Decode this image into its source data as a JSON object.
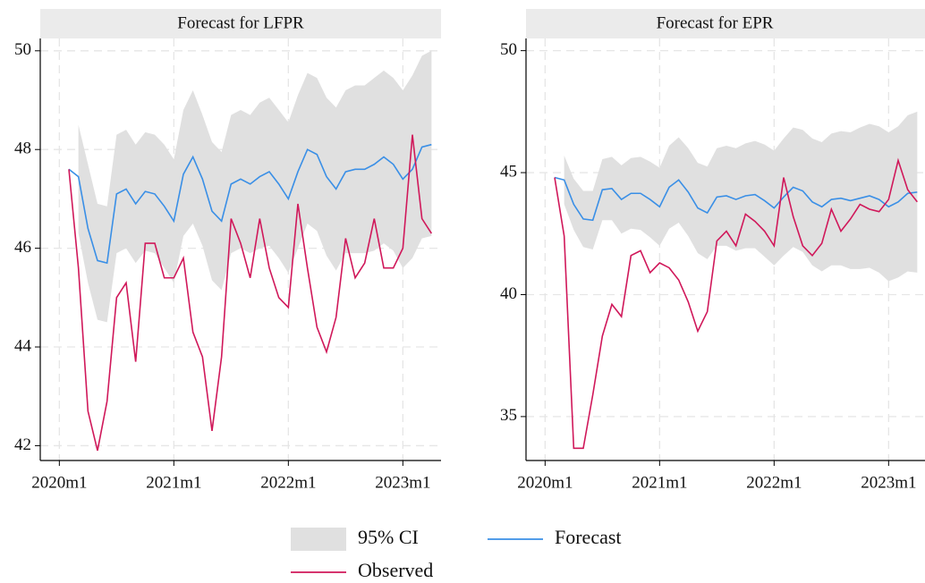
{
  "chart_data": [
    {
      "type": "line",
      "title": "Forecast for LFPR",
      "x": [
        "2020m2",
        "2020m3",
        "2020m4",
        "2020m5",
        "2020m6",
        "2020m7",
        "2020m8",
        "2020m9",
        "2020m10",
        "2020m11",
        "2020m12",
        "2021m1",
        "2021m2",
        "2021m3",
        "2021m4",
        "2021m5",
        "2021m6",
        "2021m7",
        "2021m8",
        "2021m9",
        "2021m10",
        "2021m11",
        "2021m12",
        "2022m1",
        "2022m2",
        "2022m3",
        "2022m4",
        "2022m5",
        "2022m6",
        "2022m7",
        "2022m8",
        "2022m9",
        "2022m10",
        "2022m11",
        "2022m12",
        "2023m1",
        "2023m2",
        "2023m3",
        "2023m4"
      ],
      "xlim": [
        "2019m11",
        "2023m5"
      ],
      "xticks": [
        "2020m1",
        "2021m1",
        "2022m1",
        "2023m1"
      ],
      "ylim": [
        41.7,
        50.25
      ],
      "yticks": [
        42,
        44,
        46,
        48,
        50
      ],
      "grid": true,
      "series": [
        {
          "name": "95% CI",
          "color": "#e0e0e0",
          "upper": [
            null,
            48.5,
            47.7,
            46.9,
            46.85,
            48.3,
            48.4,
            48.1,
            48.35,
            48.3,
            48.1,
            47.8,
            48.8,
            49.2,
            48.7,
            48.15,
            47.95,
            48.7,
            48.8,
            48.7,
            48.95,
            49.05,
            48.8,
            48.55,
            49.1,
            49.55,
            49.45,
            49.05,
            48.85,
            49.2,
            49.3,
            49.3,
            49.45,
            49.6,
            49.45,
            49.2,
            49.5,
            49.9,
            50.0
          ],
          "lower": [
            null,
            46.3,
            45.3,
            44.55,
            44.5,
            45.9,
            46.0,
            45.7,
            45.95,
            45.9,
            45.6,
            45.3,
            46.25,
            46.5,
            46.05,
            45.35,
            45.15,
            45.9,
            46.0,
            45.9,
            46.0,
            46.05,
            45.8,
            45.5,
            46.0,
            46.5,
            46.35,
            45.85,
            45.55,
            45.9,
            45.9,
            45.9,
            45.95,
            46.1,
            45.95,
            45.6,
            45.8,
            46.2,
            46.25
          ]
        },
        {
          "name": "Forecast",
          "color": "#3a8fe6",
          "values": [
            47.6,
            47.45,
            46.4,
            45.75,
            45.7,
            47.1,
            47.2,
            46.9,
            47.15,
            47.1,
            46.85,
            46.55,
            47.5,
            47.85,
            47.4,
            46.75,
            46.55,
            47.3,
            47.4,
            47.3,
            47.45,
            47.55,
            47.3,
            47.0,
            47.55,
            48.0,
            47.9,
            47.45,
            47.2,
            47.55,
            47.6,
            47.6,
            47.7,
            47.85,
            47.7,
            47.4,
            47.6,
            48.05,
            48.1
          ]
        },
        {
          "name": "Observed",
          "color": "#d0185a",
          "values": [
            47.6,
            45.6,
            42.7,
            41.9,
            42.9,
            45.0,
            45.3,
            43.7,
            46.1,
            46.1,
            45.4,
            45.4,
            45.8,
            44.3,
            43.8,
            42.3,
            43.8,
            46.6,
            46.1,
            45.4,
            46.6,
            45.6,
            45.0,
            44.8,
            46.9,
            45.6,
            44.4,
            43.9,
            44.6,
            46.2,
            45.4,
            45.7,
            46.6,
            45.6,
            45.6,
            46.0,
            48.3,
            46.6,
            46.3
          ]
        }
      ]
    },
    {
      "type": "line",
      "title": "Forecast for EPR",
      "x": [
        "2020m2",
        "2020m3",
        "2020m4",
        "2020m5",
        "2020m6",
        "2020m7",
        "2020m8",
        "2020m9",
        "2020m10",
        "2020m11",
        "2020m12",
        "2021m1",
        "2021m2",
        "2021m3",
        "2021m4",
        "2021m5",
        "2021m6",
        "2021m7",
        "2021m8",
        "2021m9",
        "2021m10",
        "2021m11",
        "2021m12",
        "2022m1",
        "2022m2",
        "2022m3",
        "2022m4",
        "2022m5",
        "2022m6",
        "2022m7",
        "2022m8",
        "2022m9",
        "2022m10",
        "2022m11",
        "2022m12",
        "2023m1",
        "2023m2",
        "2023m3",
        "2023m4"
      ],
      "xlim": [
        "2019m11",
        "2023m5"
      ],
      "xticks": [
        "2020m1",
        "2021m1",
        "2022m1",
        "2023m1"
      ],
      "ylim": [
        33.2,
        50.5
      ],
      "yticks": [
        35,
        40,
        45,
        50
      ],
      "grid": true,
      "series": [
        {
          "name": "95% CI",
          "color": "#e0e0e0",
          "upper": [
            null,
            45.7,
            44.75,
            44.25,
            44.25,
            45.55,
            45.65,
            45.3,
            45.6,
            45.65,
            45.45,
            45.2,
            46.1,
            46.45,
            46.0,
            45.4,
            45.25,
            46.0,
            46.1,
            46.0,
            46.2,
            46.3,
            46.15,
            45.9,
            46.4,
            46.85,
            46.75,
            46.4,
            46.25,
            46.6,
            46.7,
            46.65,
            46.85,
            47.0,
            46.9,
            46.65,
            46.9,
            47.35,
            47.5
          ],
          "lower": [
            null,
            43.7,
            42.65,
            41.95,
            41.85,
            43.05,
            43.05,
            42.5,
            42.7,
            42.65,
            42.35,
            42.0,
            42.7,
            42.95,
            42.4,
            41.7,
            41.45,
            42.0,
            42.0,
            41.8,
            41.9,
            41.9,
            41.55,
            41.2,
            41.6,
            41.95,
            41.75,
            41.2,
            40.95,
            41.2,
            41.2,
            41.05,
            41.05,
            41.1,
            40.9,
            40.55,
            40.7,
            40.95,
            40.9
          ]
        },
        {
          "name": "Forecast",
          "color": "#3a8fe6",
          "values": [
            44.8,
            44.7,
            43.7,
            43.1,
            43.05,
            44.3,
            44.35,
            43.9,
            44.15,
            44.15,
            43.9,
            43.6,
            44.4,
            44.7,
            44.2,
            43.55,
            43.35,
            44.0,
            44.05,
            43.9,
            44.05,
            44.1,
            43.85,
            43.55,
            44.0,
            44.4,
            44.25,
            43.8,
            43.6,
            43.9,
            43.95,
            43.85,
            43.95,
            44.05,
            43.9,
            43.6,
            43.8,
            44.15,
            44.2
          ]
        },
        {
          "name": "Observed",
          "color": "#d0185a",
          "values": [
            44.8,
            42.4,
            33.7,
            33.7,
            35.9,
            38.3,
            39.6,
            39.1,
            41.6,
            41.8,
            40.9,
            41.3,
            41.1,
            40.6,
            39.7,
            38.5,
            39.3,
            42.2,
            42.6,
            42.0,
            43.3,
            43.0,
            42.6,
            42.0,
            44.8,
            43.2,
            42.0,
            41.6,
            42.1,
            43.5,
            42.6,
            43.1,
            43.7,
            43.5,
            43.4,
            43.9,
            45.5,
            44.3,
            43.8
          ]
        }
      ]
    }
  ]
}
